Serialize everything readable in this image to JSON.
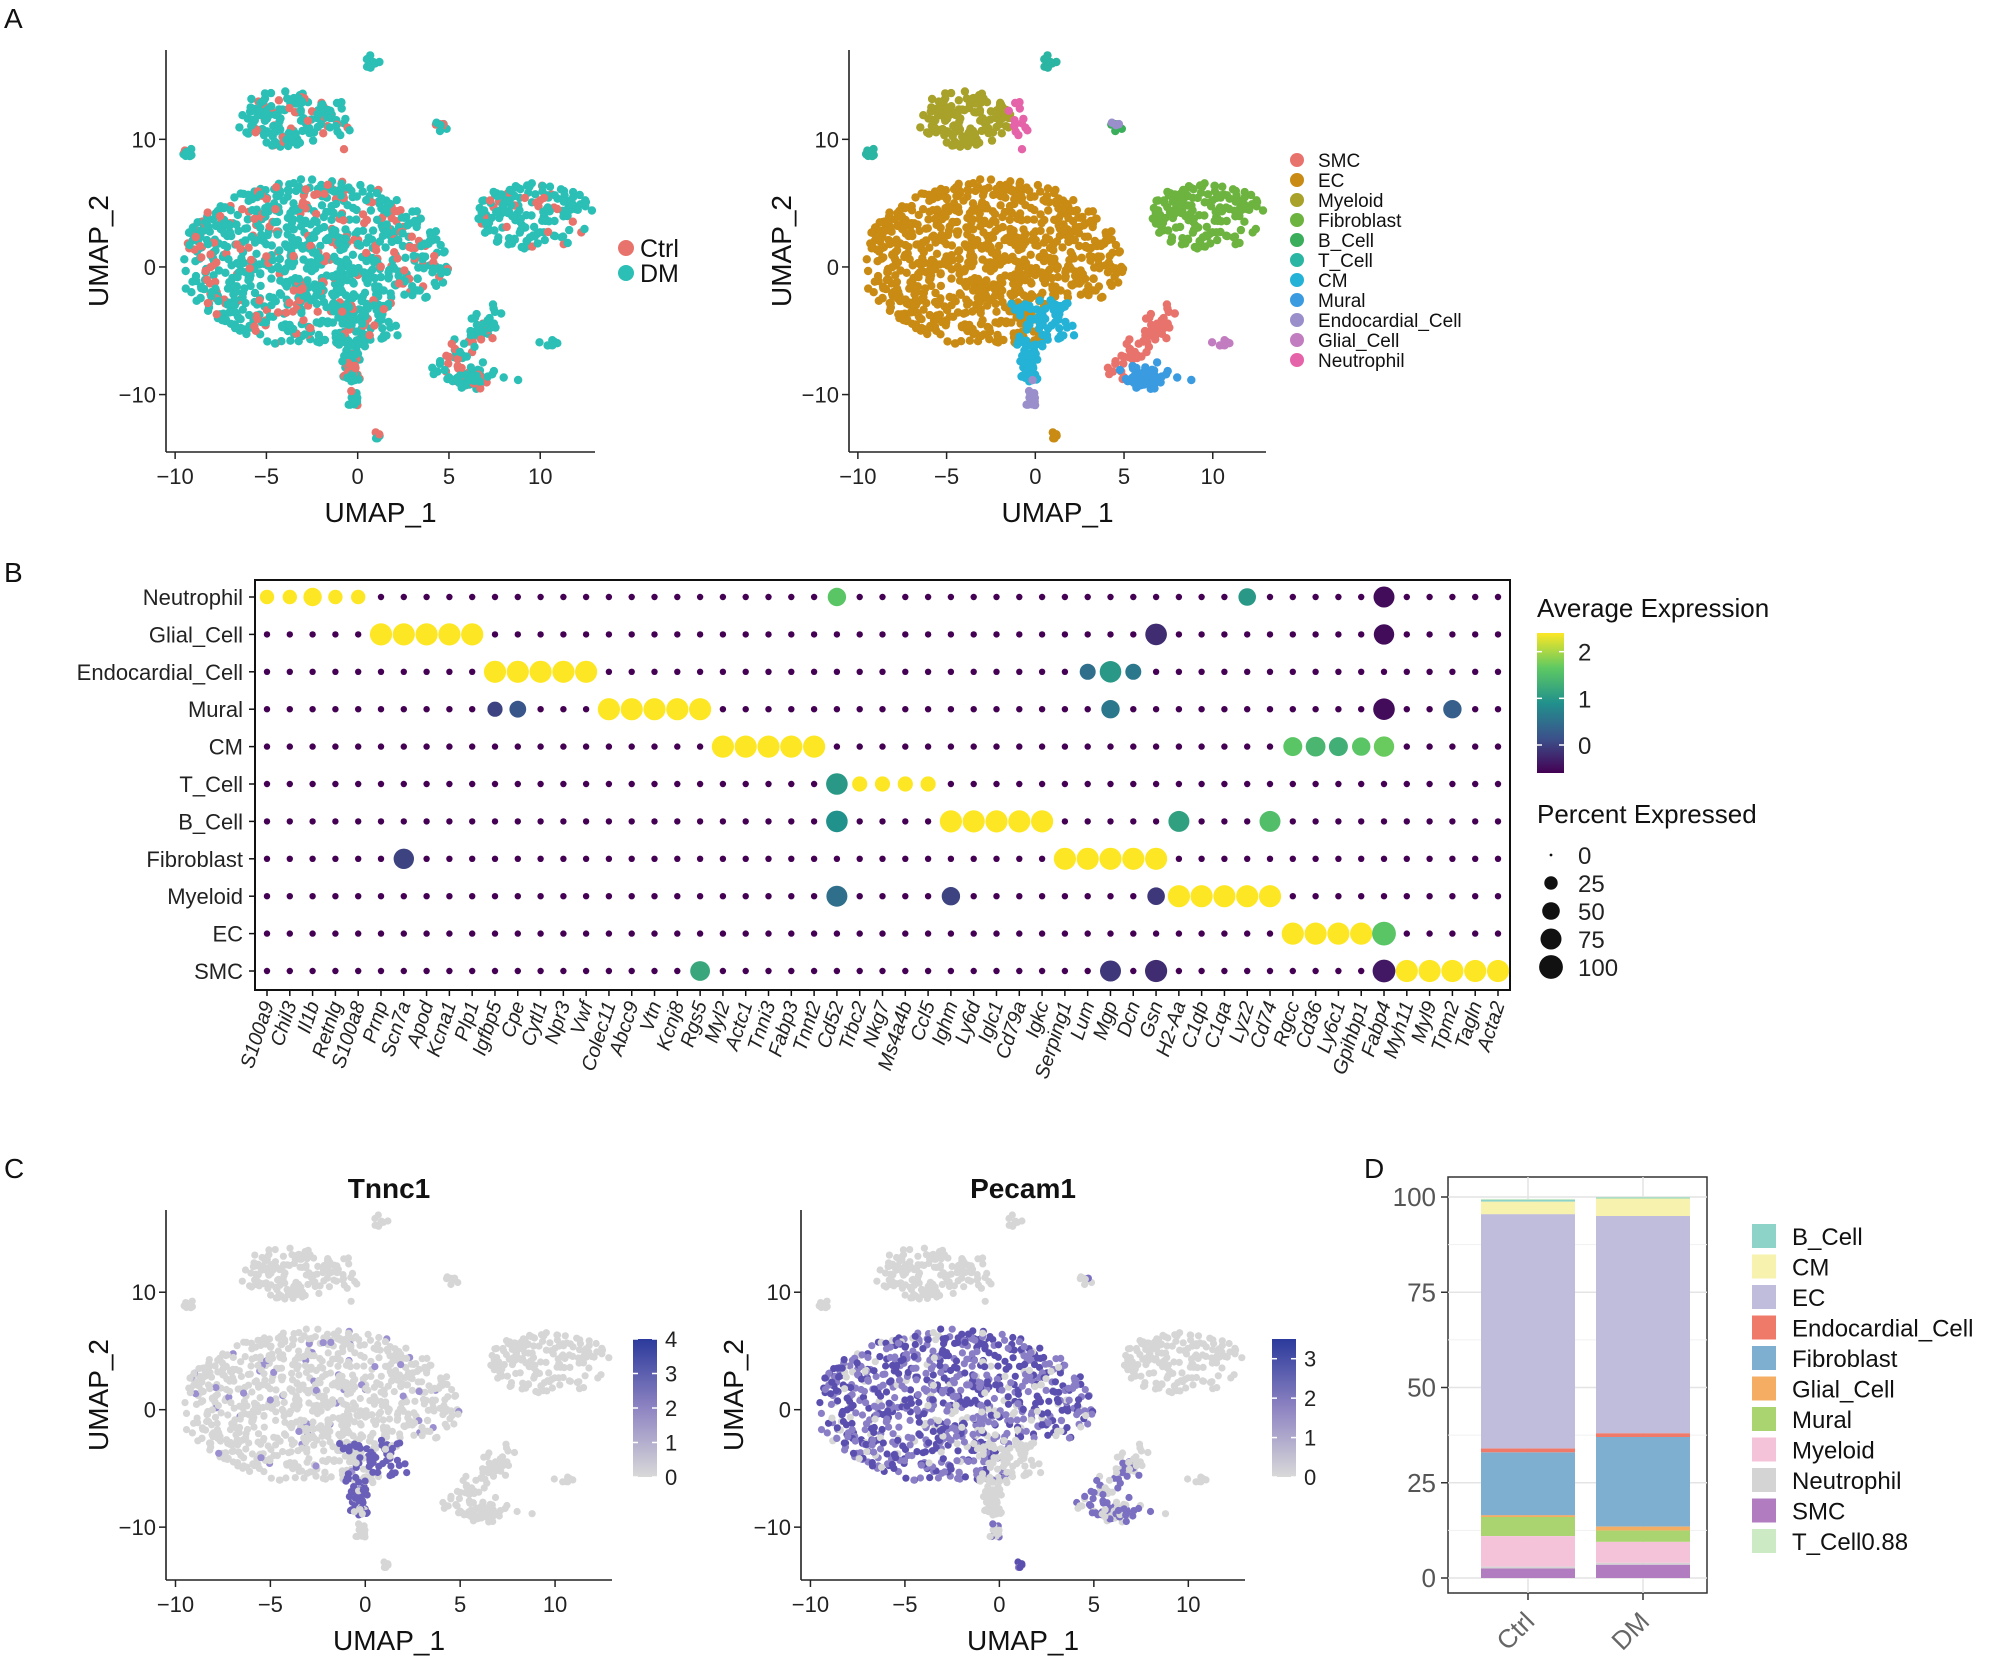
{
  "figure": {
    "panel_labels": [
      "A",
      "B",
      "C",
      "D"
    ]
  },
  "colors": {
    "Ctrl": "#E8736C",
    "DM": "#2BBFB6",
    "celltype": {
      "SMC": "#E8736C",
      "EC": "#C98B13",
      "Myeloid": "#A8A12A",
      "Fibroblast": "#6DB33F",
      "B_Cell": "#3AAE5A",
      "T_Cell": "#2BB5A3",
      "CM": "#24B2D6",
      "Mural": "#3B9BE0",
      "Endocardial_Cell": "#9A8FCB",
      "Glial_Cell": "#C27CC0",
      "Neutrophil": "#E563A8"
    },
    "viridis": [
      "#440154",
      "#3b528b",
      "#21918c",
      "#5ec962",
      "#fde725"
    ],
    "feature_low": "#d9d9d9",
    "feature_high": "#2b3a9b"
  },
  "chart_data": [
    {
      "id": "A1",
      "type": "scatter",
      "title": "",
      "xlabel": "UMAP_1",
      "ylabel": "UMAP_2",
      "xlim": [
        -10.5,
        13
      ],
      "ylim": [
        -14.5,
        17
      ],
      "xticks": [
        -10,
        -5,
        0,
        5,
        10
      ],
      "yticks": [
        -10,
        0,
        10
      ],
      "xtick_labels": [
        "−10",
        "−5",
        "0",
        "5",
        "10"
      ],
      "ytick_labels": [
        "−10",
        "0",
        "10"
      ],
      "legend": {
        "position": "right",
        "entries": [
          "Ctrl",
          "DM"
        ]
      }
    },
    {
      "id": "A2",
      "type": "scatter",
      "title": "",
      "xlabel": "UMAP_1",
      "ylabel": "UMAP_2",
      "xlim": [
        -10.5,
        13
      ],
      "ylim": [
        -14.5,
        17
      ],
      "xticks": [
        -10,
        -5,
        0,
        5,
        10
      ],
      "yticks": [
        -10,
        0,
        10
      ],
      "xtick_labels": [
        "−10",
        "−5",
        "0",
        "5",
        "10"
      ],
      "ytick_labels": [
        "−10",
        "0",
        "10"
      ],
      "legend": {
        "position": "right",
        "entries": [
          "SMC",
          "EC",
          "Myeloid",
          "Fibroblast",
          "B_Cell",
          "T_Cell",
          "CM",
          "Mural",
          "Endocardial_Cell",
          "Glial_Cell",
          "Neutrophil"
        ]
      }
    },
    {
      "id": "B",
      "type": "dotplot",
      "title": "",
      "rows": [
        "Neutrophil",
        "Glial_Cell",
        "Endocardial_Cell",
        "Mural",
        "CM",
        "T_Cell",
        "B_Cell",
        "Fibroblast",
        "Myeloid",
        "EC",
        "SMC"
      ],
      "genes": [
        "S100a9",
        "Chil3",
        "Il1b",
        "Retnlg",
        "S100a8",
        "Prnp",
        "Scn7a",
        "Apod",
        "Kcna1",
        "Plp1",
        "Igfbp5",
        "Cpe",
        "Cytl1",
        "Npr3",
        "Vwf",
        "Colec11",
        "Abcc9",
        "Vtn",
        "Kcnj8",
        "Rgs5",
        "Myl2",
        "Actc1",
        "Tnni3",
        "Fabp3",
        "Tnnt2",
        "Cd52",
        "Trbc2",
        "Nkg7",
        "Ms4a4b",
        "Ccl5",
        "Ighm",
        "Ly6d",
        "Iglc1",
        "Cd79a",
        "Igkc",
        "Serping1",
        "Lum",
        "Mgp",
        "Dcn",
        "Gsn",
        "H2-Aa",
        "C1qb",
        "C1qa",
        "Lyz2",
        "Cd74",
        "Rgcc",
        "Cd36",
        "Ly6c1",
        "Gpihbp1",
        "Fabp4",
        "Myh11",
        "Myl9",
        "Tpm2",
        "Tagln",
        "Acta2"
      ],
      "marker_blocks": [
        {
          "row": "Neutrophil",
          "genes": [
            "S100a9",
            "Chil3",
            "Il1b",
            "Retnlg",
            "S100a8"
          ]
        },
        {
          "row": "Glial_Cell",
          "genes": [
            "Prnp",
            "Scn7a",
            "Apod",
            "Kcna1",
            "Plp1"
          ]
        },
        {
          "row": "Endocardial_Cell",
          "genes": [
            "Igfbp5",
            "Cpe",
            "Cytl1",
            "Npr3",
            "Vwf"
          ]
        },
        {
          "row": "Mural",
          "genes": [
            "Colec11",
            "Abcc9",
            "Vtn",
            "Kcnj8",
            "Rgs5"
          ]
        },
        {
          "row": "CM",
          "genes": [
            "Myl2",
            "Actc1",
            "Tnni3",
            "Fabp3",
            "Tnnt2"
          ]
        },
        {
          "row": "T_Cell",
          "genes": [
            "Cd52",
            "Trbc2",
            "Nkg7",
            "Ms4a4b",
            "Ccl5"
          ]
        },
        {
          "row": "B_Cell",
          "genes": [
            "Ighm",
            "Ly6d",
            "Iglc1",
            "Cd79a",
            "Igkc"
          ]
        },
        {
          "row": "Fibroblast",
          "genes": [
            "Serping1",
            "Lum",
            "Mgp",
            "Dcn",
            "Gsn"
          ]
        },
        {
          "row": "Myeloid",
          "genes": [
            "H2-Aa",
            "C1qb",
            "C1qa",
            "Lyz2",
            "Cd74"
          ]
        },
        {
          "row": "EC",
          "genes": [
            "Rgcc",
            "Cd36",
            "Ly6c1",
            "Gpihbp1",
            "Fabp4"
          ]
        },
        {
          "row": "SMC",
          "genes": [
            "Myh11",
            "Myl9",
            "Tpm2",
            "Tagln",
            "Acta2"
          ]
        }
      ],
      "notable_cells": [
        {
          "row": "Neutrophil",
          "gene": "Cd52",
          "exp": 1.6,
          "pct": 55
        },
        {
          "row": "Neutrophil",
          "gene": "Lyz2",
          "exp": 1.0,
          "pct": 50
        },
        {
          "row": "Neutrophil",
          "gene": "Fabp4",
          "exp": -0.5,
          "pct": 75
        },
        {
          "row": "Glial_Cell",
          "gene": "Gsn",
          "exp": -0.2,
          "pct": 80
        },
        {
          "row": "Glial_Cell",
          "gene": "Fabp4",
          "exp": -0.5,
          "pct": 70
        },
        {
          "row": "Endocardial_Cell",
          "gene": "Mgp",
          "exp": 1.0,
          "pct": 80
        },
        {
          "row": "Endocardial_Cell",
          "gene": "Lum",
          "exp": 0.5,
          "pct": 40
        },
        {
          "row": "Endocardial_Cell",
          "gene": "Dcn",
          "exp": 0.6,
          "pct": 40
        },
        {
          "row": "Mural",
          "gene": "Mgp",
          "exp": 0.6,
          "pct": 55
        },
        {
          "row": "Mural",
          "gene": "Igfbp5",
          "exp": 0.0,
          "pct": 35
        },
        {
          "row": "Mural",
          "gene": "Cpe",
          "exp": 0.2,
          "pct": 45
        },
        {
          "row": "Mural",
          "gene": "Tpm2",
          "exp": 0.3,
          "pct": 55
        },
        {
          "row": "Mural",
          "gene": "Fabp4",
          "exp": -0.5,
          "pct": 80
        },
        {
          "row": "CM",
          "gene": "Rgcc",
          "exp": 1.6,
          "pct": 60
        },
        {
          "row": "CM",
          "gene": "Cd36",
          "exp": 1.4,
          "pct": 65
        },
        {
          "row": "CM",
          "gene": "Ly6c1",
          "exp": 1.3,
          "pct": 60
        },
        {
          "row": "CM",
          "gene": "Gpihbp1",
          "exp": 1.6,
          "pct": 55
        },
        {
          "row": "CM",
          "gene": "Fabp4",
          "exp": 1.7,
          "pct": 70
        },
        {
          "row": "T_Cell",
          "gene": "Cd52",
          "exp": 1.0,
          "pct": 80
        },
        {
          "row": "B_Cell",
          "gene": "Cd52",
          "exp": 0.9,
          "pct": 80
        },
        {
          "row": "B_Cell",
          "gene": "H2-Aa",
          "exp": 1.1,
          "pct": 75
        },
        {
          "row": "B_Cell",
          "gene": "Cd74",
          "exp": 1.5,
          "pct": 75
        },
        {
          "row": "Fibroblast",
          "gene": "Scn7a",
          "exp": 0.0,
          "pct": 70
        },
        {
          "row": "Myeloid",
          "gene": "Cd52",
          "exp": 0.5,
          "pct": 75
        },
        {
          "row": "Myeloid",
          "gene": "Ighm",
          "exp": 0.0,
          "pct": 55
        },
        {
          "row": "Myeloid",
          "gene": "Gsn",
          "exp": -0.1,
          "pct": 50
        },
        {
          "row": "EC",
          "gene": "Fabp4",
          "exp": 1.6,
          "pct": 100
        },
        {
          "row": "SMC",
          "gene": "Rgs5",
          "exp": 1.2,
          "pct": 65
        },
        {
          "row": "SMC",
          "gene": "Mgp",
          "exp": -0.1,
          "pct": 75
        },
        {
          "row": "SMC",
          "gene": "Gsn",
          "exp": -0.2,
          "pct": 85
        },
        {
          "row": "SMC",
          "gene": "Fabp4",
          "exp": -0.4,
          "pct": 90
        }
      ],
      "legend_exp": {
        "title": "Average Expression",
        "ticks": [
          0,
          1,
          2
        ],
        "tick_labels": [
          "0",
          "1",
          "2"
        ],
        "range": [
          -0.6,
          2.4
        ]
      },
      "legend_pct": {
        "title": "Percent Expressed",
        "ticks": [
          0,
          25,
          50,
          75,
          100
        ],
        "tick_labels": [
          "0",
          "25",
          "50",
          "75",
          "100"
        ]
      }
    },
    {
      "id": "C1",
      "type": "scatter",
      "title": "Tnnc1",
      "xlabel": "UMAP_1",
      "ylabel": "UMAP_2",
      "xlim": [
        -10.5,
        13
      ],
      "ylim": [
        -14.5,
        17
      ],
      "xticks": [
        -10,
        -5,
        0,
        5,
        10
      ],
      "yticks": [
        -10,
        0,
        10
      ],
      "xtick_labels": [
        "−10",
        "−5",
        "0",
        "5",
        "10"
      ],
      "ytick_labels": [
        "−10",
        "0",
        "10"
      ],
      "legend": {
        "position": "right",
        "range": [
          0,
          4
        ],
        "tick_labels": [
          "4",
          "3",
          "2",
          "1",
          "0"
        ]
      }
    },
    {
      "id": "C2",
      "type": "scatter",
      "title": "Pecam1",
      "xlabel": "UMAP_1",
      "ylabel": "UMAP_2",
      "xlim": [
        -10.5,
        13
      ],
      "ylim": [
        -14.5,
        17
      ],
      "xticks": [
        -10,
        -5,
        0,
        5,
        10
      ],
      "yticks": [
        -10,
        0,
        10
      ],
      "xtick_labels": [
        "−10",
        "−5",
        "0",
        "5",
        "10"
      ],
      "ytick_labels": [
        "−10",
        "0",
        "10"
      ],
      "legend": {
        "position": "right",
        "range": [
          0,
          3.5
        ],
        "tick_labels": [
          "3",
          "2",
          "1",
          "0"
        ]
      }
    },
    {
      "id": "D",
      "type": "bar",
      "stacked": true,
      "title": "",
      "categories": [
        "Ctrl",
        "DM"
      ],
      "ylim": [
        0,
        100
      ],
      "yticks": [
        0,
        25,
        50,
        75,
        100
      ],
      "ytick_labels": [
        "0",
        "25",
        "50",
        "75",
        "100"
      ],
      "series": [
        {
          "name": "SMC",
          "color": "#B27DC0",
          "values": [
            2.5,
            3.5
          ]
        },
        {
          "name": "Neutrophil",
          "color": "#D4D4D4",
          "values": [
            0.5,
            0.5
          ]
        },
        {
          "name": "Myeloid",
          "color": "#F4C3DA",
          "values": [
            8,
            5.5
          ]
        },
        {
          "name": "Mural",
          "color": "#A9D46F",
          "values": [
            5,
            3
          ]
        },
        {
          "name": "Glial_Cell",
          "color": "#F5AC63",
          "values": [
            0.5,
            1
          ]
        },
        {
          "name": "Fibroblast",
          "color": "#7EAFD0",
          "values": [
            16.5,
            23.5
          ]
        },
        {
          "name": "Endocardial_Cell",
          "color": "#F07A6A",
          "values": [
            1,
            1
          ]
        },
        {
          "name": "EC",
          "color": "#BFBCDC",
          "values": [
            61.5,
            57
          ]
        },
        {
          "name": "CM",
          "color": "#F7F2AE",
          "values": [
            3.3,
            4.6
          ]
        },
        {
          "name": "B_Cell",
          "color": "#8DD3C7",
          "values": [
            0.5,
            0.3
          ]
        },
        {
          "name": "T_Cell",
          "color": "#CCEBC5",
          "values": [
            0.2,
            0.1
          ]
        }
      ],
      "legend": {
        "position": "right",
        "entries": [
          "B_Cell",
          "CM",
          "EC",
          "Endocardial_Cell",
          "Fibroblast",
          "Glial_Cell",
          "Mural",
          "Myeloid",
          "Neutrophil",
          "SMC",
          "T_Cell0.88"
        ]
      }
    }
  ]
}
